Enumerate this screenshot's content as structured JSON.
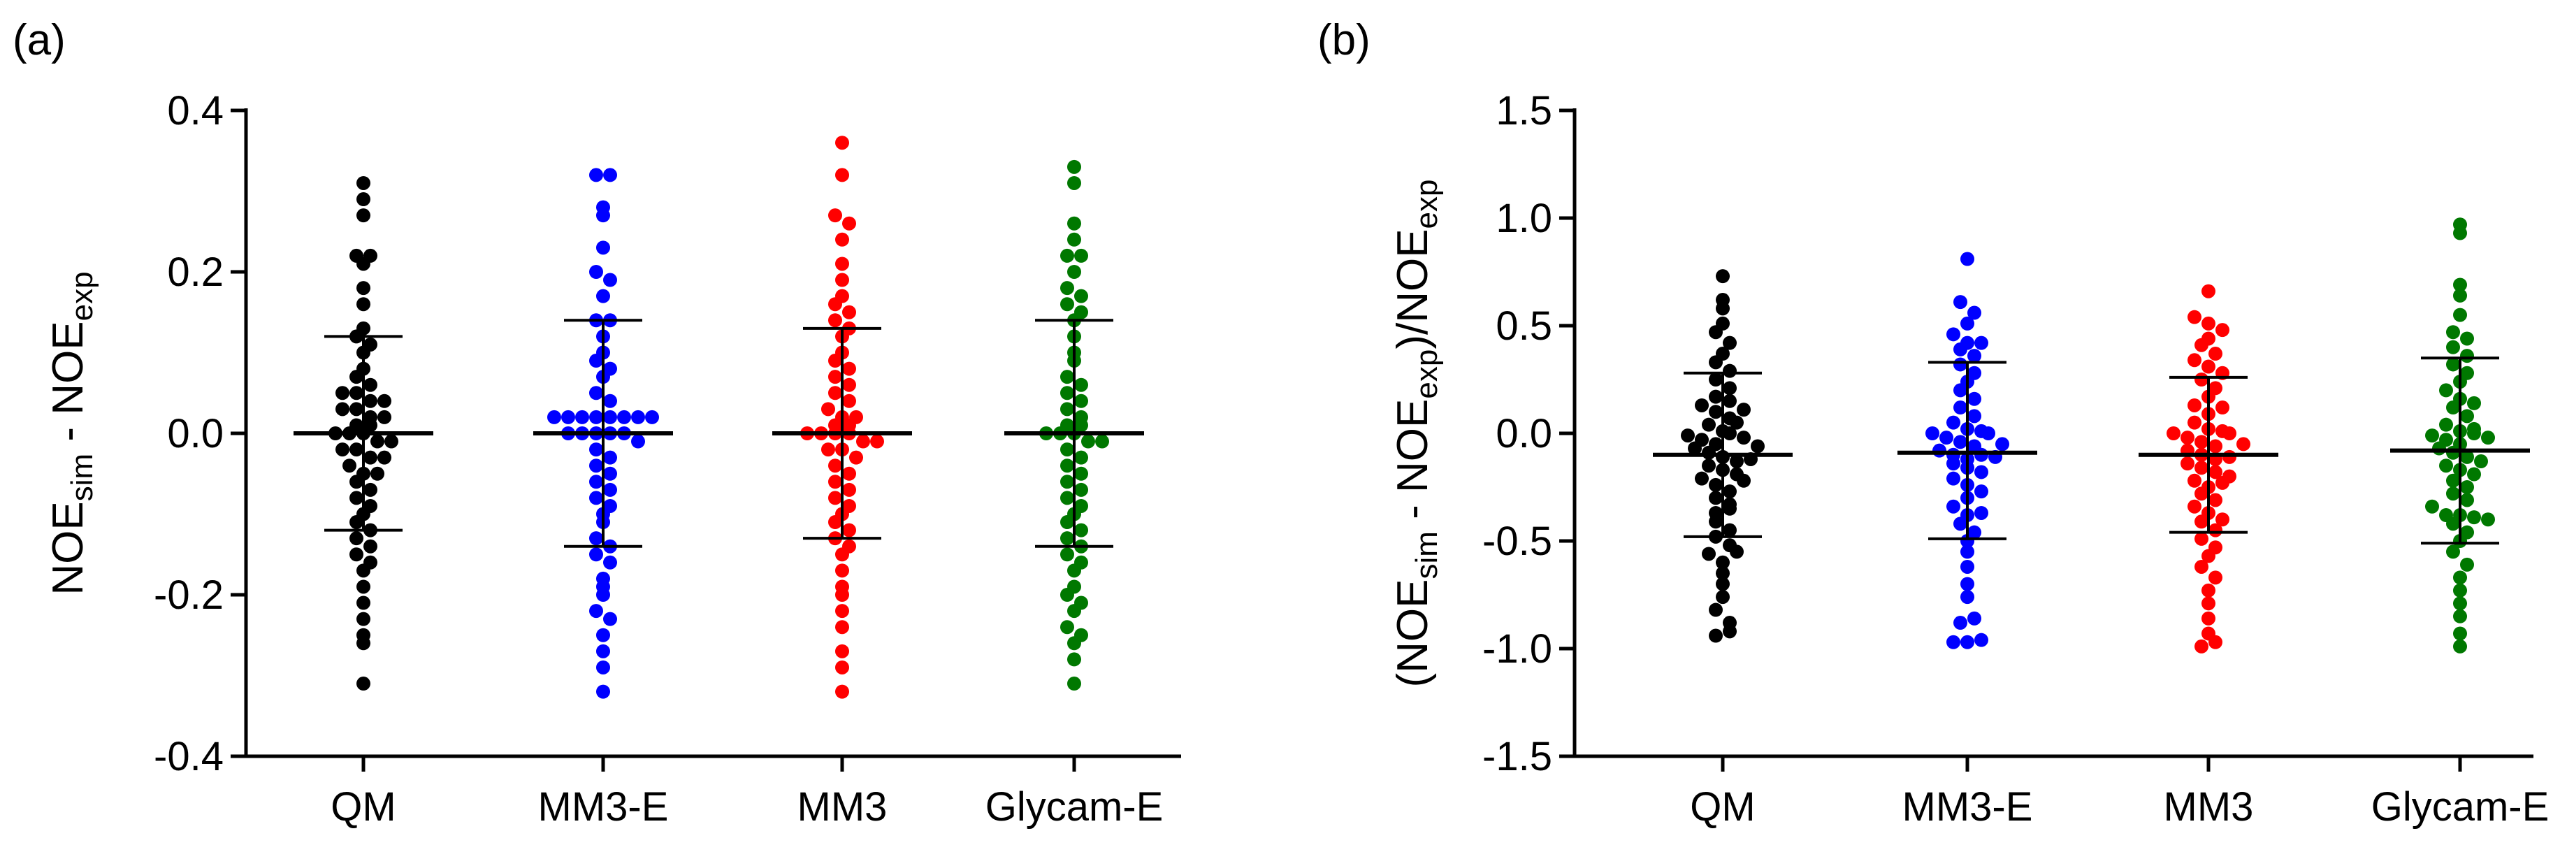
{
  "chart_data": [
    {
      "type": "scatter",
      "panel_label": "(a)",
      "ylabel": {
        "parts": [
          "NOE",
          "sim",
          " - NOE",
          "exp"
        ]
      },
      "ylim": [
        -0.4,
        0.4
      ],
      "yticks": [
        -0.4,
        -0.2,
        0.0,
        0.2,
        0.4
      ],
      "ytick_labels": [
        "-0.4",
        "-0.2",
        "0.0",
        "0.2",
        "0.4"
      ],
      "categories": [
        "QM",
        "MM3-E",
        "MM3",
        "Glycam-E"
      ],
      "series": [
        {
          "name": "QM",
          "color": "#000000",
          "mean": 0.0,
          "sd": 0.12,
          "values": [
            0.31,
            0.29,
            0.27,
            0.22,
            0.22,
            0.21,
            0.18,
            0.16,
            0.13,
            0.12,
            0.11,
            0.1,
            0.08,
            0.07,
            0.06,
            0.05,
            0.05,
            0.04,
            0.04,
            0.03,
            0.03,
            0.02,
            0.02,
            0.01,
            0.01,
            0.0,
            0.0,
            0.0,
            -0.01,
            -0.01,
            -0.02,
            -0.02,
            -0.03,
            -0.03,
            -0.04,
            -0.05,
            -0.05,
            -0.06,
            -0.07,
            -0.08,
            -0.09,
            -0.1,
            -0.11,
            -0.12,
            -0.13,
            -0.14,
            -0.15,
            -0.16,
            -0.17,
            -0.19,
            -0.21,
            -0.23,
            -0.25,
            -0.26,
            -0.31
          ]
        },
        {
          "name": "MM3-E",
          "color": "#0000ff",
          "mean": 0.0,
          "sd": 0.14,
          "values": [
            0.32,
            0.32,
            0.28,
            0.27,
            0.23,
            0.2,
            0.19,
            0.17,
            0.14,
            0.14,
            0.12,
            0.1,
            0.09,
            0.08,
            0.07,
            0.05,
            0.04,
            0.02,
            0.02,
            0.02,
            0.02,
            0.02,
            0.02,
            0.02,
            0.02,
            0.0,
            0.0,
            0.0,
            0.0,
            0.0,
            -0.01,
            -0.02,
            -0.03,
            -0.04,
            -0.05,
            -0.06,
            -0.07,
            -0.08,
            -0.09,
            -0.1,
            -0.11,
            -0.13,
            -0.14,
            -0.15,
            -0.16,
            -0.18,
            -0.19,
            -0.2,
            -0.22,
            -0.23,
            -0.25,
            -0.27,
            -0.29,
            -0.32
          ]
        },
        {
          "name": "MM3",
          "color": "#ff0000",
          "mean": 0.0,
          "sd": 0.13,
          "values": [
            0.36,
            0.32,
            0.27,
            0.26,
            0.24,
            0.21,
            0.19,
            0.17,
            0.16,
            0.15,
            0.14,
            0.13,
            0.12,
            0.1,
            0.09,
            0.08,
            0.07,
            0.06,
            0.05,
            0.04,
            0.03,
            0.02,
            0.02,
            0.01,
            0.01,
            0.0,
            0.0,
            0.0,
            0.0,
            -0.01,
            -0.01,
            -0.02,
            -0.02,
            -0.03,
            -0.04,
            -0.05,
            -0.06,
            -0.07,
            -0.08,
            -0.09,
            -0.1,
            -0.11,
            -0.12,
            -0.13,
            -0.14,
            -0.15,
            -0.17,
            -0.19,
            -0.2,
            -0.22,
            -0.24,
            -0.27,
            -0.29,
            -0.32
          ]
        },
        {
          "name": "Glycam-E",
          "color": "#007800",
          "mean": 0.0,
          "sd": 0.14,
          "values": [
            0.33,
            0.31,
            0.26,
            0.24,
            0.22,
            0.22,
            0.2,
            0.18,
            0.17,
            0.16,
            0.15,
            0.14,
            0.12,
            0.1,
            0.09,
            0.07,
            0.06,
            0.05,
            0.04,
            0.03,
            0.02,
            0.01,
            0.01,
            0.0,
            0.0,
            0.0,
            -0.01,
            -0.01,
            -0.02,
            -0.03,
            -0.04,
            -0.05,
            -0.06,
            -0.07,
            -0.08,
            -0.09,
            -0.1,
            -0.11,
            -0.12,
            -0.13,
            -0.14,
            -0.15,
            -0.16,
            -0.17,
            -0.19,
            -0.2,
            -0.21,
            -0.22,
            -0.24,
            -0.25,
            -0.26,
            -0.28,
            -0.31
          ]
        }
      ]
    },
    {
      "type": "scatter",
      "panel_label": "(b)",
      "ylabel": {
        "parts": [
          "(NOE",
          "sim",
          " - NOE",
          "exp",
          ")/NOE",
          "exp"
        ]
      },
      "ylim": [
        -1.5,
        1.5
      ],
      "yticks": [
        -1.5,
        -1.0,
        -0.5,
        0.0,
        0.5,
        1.0,
        1.5
      ],
      "ytick_labels": [
        "-1.5",
        "-1.0",
        "-0.5",
        "0.0",
        "0.5",
        "1.0",
        "1.5"
      ],
      "categories": [
        "QM",
        "MM3-E",
        "MM3",
        "Glycam-E"
      ],
      "series": [
        {
          "name": "QM",
          "color": "#000000",
          "mean": -0.1,
          "sd": 0.38,
          "err_low": -0.48,
          "err_high": 0.28,
          "values": [
            0.73,
            0.62,
            0.58,
            0.51,
            0.47,
            0.42,
            0.37,
            0.33,
            0.29,
            0.25,
            0.21,
            0.17,
            0.13,
            0.1,
            0.07,
            0.04,
            0.01,
            -0.01,
            -0.03,
            -0.05,
            -0.07,
            -0.09,
            -0.11,
            -0.13,
            -0.15,
            -0.17,
            -0.19,
            -0.21,
            -0.24,
            -0.27,
            -0.3,
            -0.33,
            -0.37,
            -0.41,
            -0.45,
            -0.48,
            -0.52,
            -0.56,
            -0.6,
            -0.65,
            -0.7,
            -0.76,
            -0.82,
            -0.88,
            -0.94,
            0.15,
            0.11,
            0.05,
            0.0,
            -0.02,
            -0.06,
            -0.12,
            -0.22,
            -0.35,
            -0.55,
            -0.92
          ]
        },
        {
          "name": "MM3-E",
          "color": "#0000ff",
          "mean": -0.09,
          "sd": 0.41,
          "err_low": -0.49,
          "err_high": 0.33,
          "values": [
            0.81,
            0.61,
            0.56,
            0.51,
            0.46,
            0.42,
            0.39,
            0.36,
            0.32,
            0.28,
            0.24,
            0.2,
            0.16,
            0.12,
            0.08,
            0.05,
            0.02,
            0.0,
            -0.02,
            -0.04,
            -0.06,
            -0.08,
            -0.1,
            -0.12,
            -0.14,
            -0.16,
            -0.18,
            -0.21,
            -0.24,
            -0.27,
            -0.3,
            -0.34,
            -0.38,
            -0.42,
            -0.46,
            -0.5,
            -0.55,
            -0.62,
            -0.7,
            -0.76,
            -0.88,
            -0.97,
            -0.97,
            -0.96,
            0.0,
            0.01,
            -0.05,
            -0.1,
            -0.11,
            0.42,
            -0.37,
            -0.86
          ]
        },
        {
          "name": "MM3",
          "color": "#ff0000",
          "mean": -0.1,
          "sd": 0.36,
          "err_low": -0.46,
          "err_high": 0.26,
          "values": [
            0.66,
            0.54,
            0.51,
            0.48,
            0.44,
            0.41,
            0.37,
            0.34,
            0.31,
            0.28,
            0.25,
            0.21,
            0.17,
            0.13,
            0.09,
            0.05,
            0.02,
            0.0,
            -0.02,
            -0.04,
            -0.06,
            -0.08,
            -0.1,
            -0.12,
            -0.14,
            -0.16,
            -0.18,
            -0.2,
            -0.22,
            -0.25,
            -0.28,
            -0.31,
            -0.34,
            -0.37,
            -0.41,
            -0.45,
            -0.49,
            -0.53,
            -0.57,
            -0.62,
            -0.67,
            -0.73,
            -0.79,
            -0.86,
            -0.93,
            -0.99,
            -0.97,
            0.0,
            0.01,
            -0.05,
            -0.11,
            -0.23,
            0.12,
            -0.4
          ]
        },
        {
          "name": "Glycam-E",
          "color": "#007800",
          "mean": -0.08,
          "sd": 0.43,
          "err_low": -0.51,
          "err_high": 0.35,
          "values": [
            0.97,
            0.93,
            0.69,
            0.64,
            0.55,
            0.47,
            0.44,
            0.4,
            0.36,
            0.32,
            0.28,
            0.24,
            0.2,
            0.16,
            0.12,
            0.08,
            0.04,
            0.01,
            -0.01,
            -0.03,
            -0.05,
            -0.07,
            -0.09,
            -0.11,
            -0.13,
            -0.15,
            -0.17,
            -0.19,
            -0.22,
            -0.25,
            -0.28,
            -0.31,
            -0.34,
            -0.38,
            -0.42,
            -0.46,
            -0.5,
            -0.55,
            -0.61,
            -0.67,
            -0.73,
            -0.79,
            -0.85,
            -0.93,
            -0.99,
            0.0,
            0.02,
            -0.02,
            -0.38,
            -0.39,
            -0.4,
            0.14
          ]
        }
      ]
    }
  ]
}
